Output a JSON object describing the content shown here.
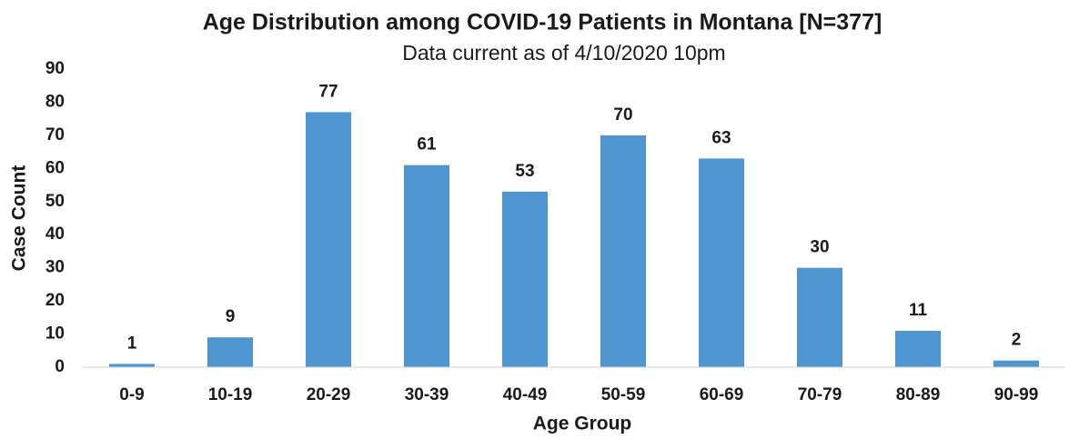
{
  "chart_data": {
    "type": "bar",
    "title": "Age Distribution among COVID-19 Patients in Montana [N=377]",
    "subtitle": "Data current as of 4/10/2020 10pm",
    "x_label": "Age Group",
    "y_label": "Case Count",
    "categories": [
      "0-9",
      "10-19",
      "20-29",
      "30-39",
      "40-49",
      "50-59",
      "60-69",
      "70-79",
      "80-89",
      "90-99"
    ],
    "values": [
      1,
      9,
      77,
      61,
      53,
      70,
      63,
      30,
      11,
      2
    ],
    "color": "#4f96d0",
    "ylim": [
      0,
      90
    ],
    "yticks": [
      0,
      10,
      20,
      30,
      40,
      50,
      60,
      70,
      80,
      90
    ],
    "grid": false
  }
}
